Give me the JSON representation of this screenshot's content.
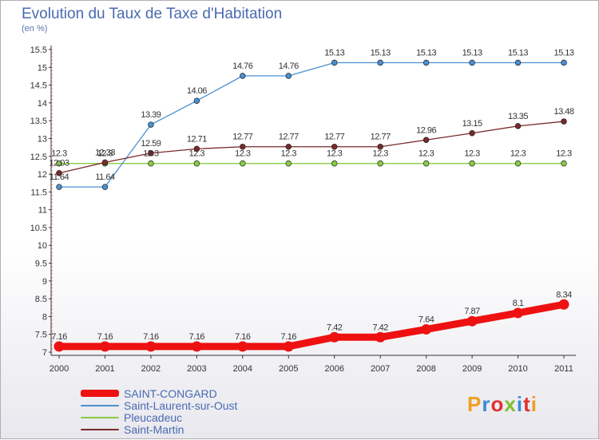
{
  "title": "Evolution du Taux de Taxe d'Habitation",
  "subtitle": "(en %)",
  "logo": {
    "text": "Proxiti",
    "letter_colors": [
      "#f0a020",
      "#3a8ad8",
      "#e03030",
      "#80c030",
      "#3a8ad8",
      "#e03030",
      "#f0a020"
    ]
  },
  "chart_data": {
    "type": "line",
    "x": [
      "2000",
      "2001",
      "2002",
      "2003",
      "2004",
      "2005",
      "2006",
      "2007",
      "2008",
      "2009",
      "2010",
      "2011"
    ],
    "ylim": [
      7,
      15.5
    ],
    "yticks": [
      "7",
      "7.5",
      "8",
      "8.5",
      "9",
      "9.5",
      "10",
      "10.5",
      "11",
      "11.5",
      "12",
      "12.5",
      "13",
      "13.5",
      "14",
      "14.5",
      "15",
      "15.5"
    ],
    "grid": false,
    "legend_position": "bottom-left",
    "series": [
      {
        "name": "SAINT-CONGARD",
        "color": "#ee1111",
        "values": [
          7.16,
          7.16,
          7.16,
          7.16,
          7.16,
          7.16,
          7.42,
          7.42,
          7.64,
          7.87,
          8.1,
          8.34
        ],
        "labels": [
          "7.16",
          "7.16",
          "7.16",
          "7.16",
          "7.16",
          "7.16",
          "7.42",
          "7.42",
          "7.64",
          "7.87",
          "8.1",
          "8.34"
        ]
      },
      {
        "name": "Saint-Laurent-sur-Oust",
        "color": "#4a90d0",
        "values": [
          11.64,
          11.64,
          13.39,
          14.06,
          14.76,
          14.76,
          15.13,
          15.13,
          15.13,
          15.13,
          15.13,
          15.13
        ],
        "labels": [
          "11.64",
          "11.64",
          "13.39",
          "14.06",
          "14.76",
          "14.76",
          "15.13",
          "15.13",
          "15.13",
          "15.13",
          "15.13",
          "15.13"
        ]
      },
      {
        "name": "Pleucadeuc",
        "color": "#88cc44",
        "values": [
          12.3,
          12.3,
          12.3,
          12.3,
          12.3,
          12.3,
          12.3,
          12.3,
          12.3,
          12.3,
          12.3,
          12.3
        ],
        "labels": [
          "12.3",
          "12.3",
          "12.3",
          "12.3",
          "12.3",
          "12.3",
          "12.3",
          "12.3",
          "12.3",
          "12.3",
          "12.3",
          "12.3"
        ]
      },
      {
        "name": "Saint-Martin",
        "color": "#7a2a2a",
        "values": [
          12.03,
          12.33,
          12.59,
          12.71,
          12.77,
          12.77,
          12.77,
          12.77,
          12.96,
          13.15,
          13.35,
          13.48
        ],
        "labels": [
          "12.03",
          "12.33",
          "12.59",
          "12.71",
          "12.77",
          "12.77",
          "12.77",
          "12.77",
          "12.96",
          "13.15",
          "13.35",
          "13.48"
        ]
      }
    ]
  }
}
